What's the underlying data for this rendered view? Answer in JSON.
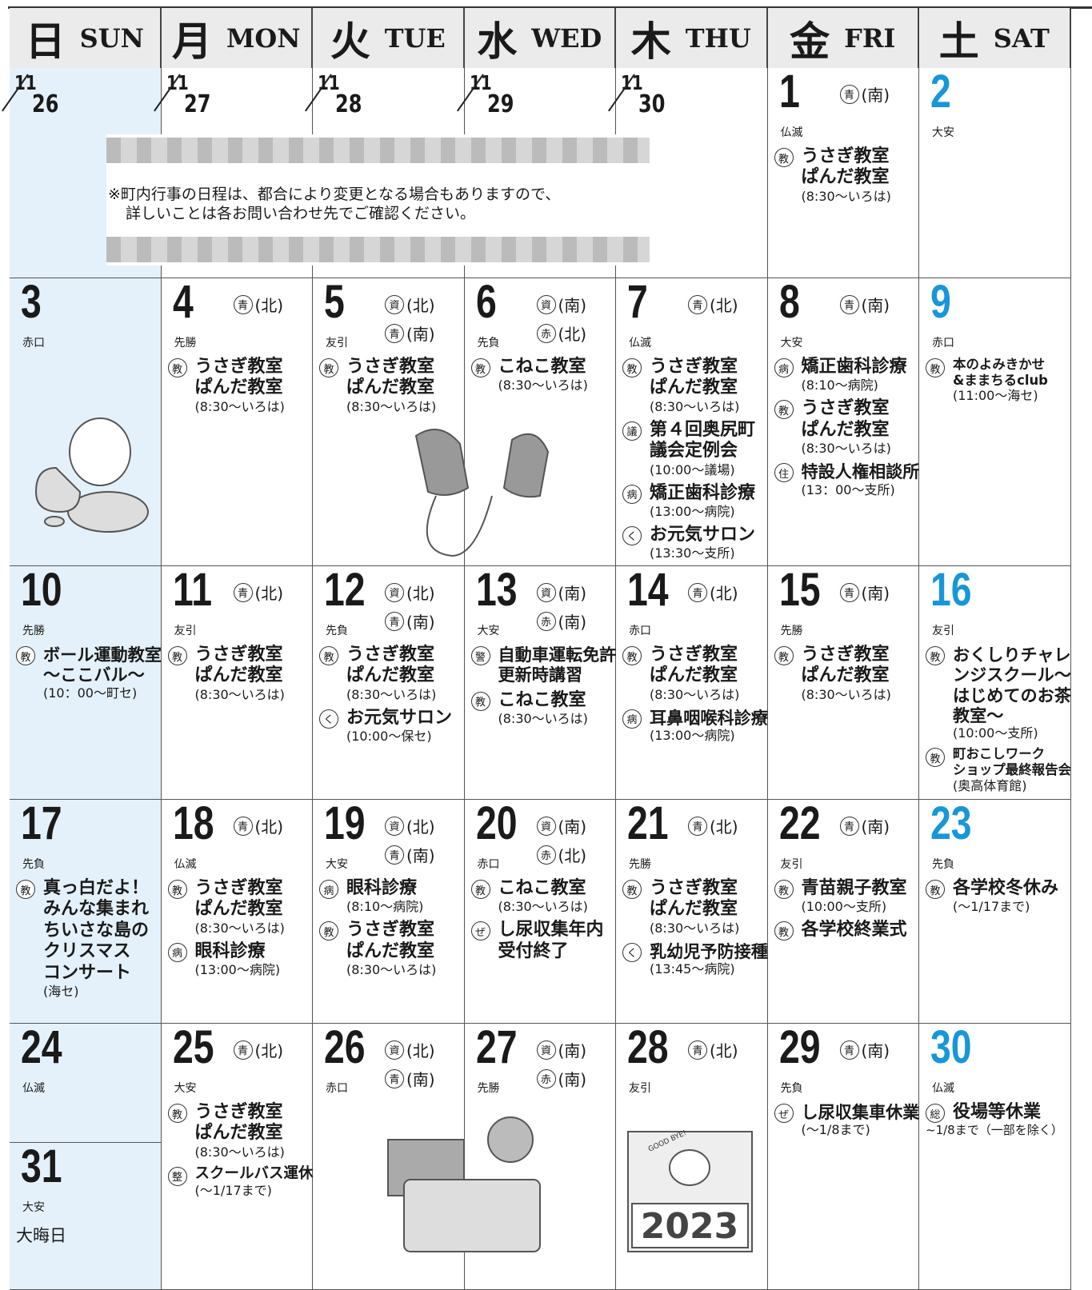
{
  "header": [
    {
      "kanji": "日",
      "en": "SUN"
    },
    {
      "kanji": "月",
      "en": "MON"
    },
    {
      "kanji": "火",
      "en": "TUE"
    },
    {
      "kanji": "水",
      "en": "WED"
    },
    {
      "kanji": "木",
      "en": "THU"
    },
    {
      "kanji": "金",
      "en": "FRI"
    },
    {
      "kanji": "土",
      "en": "SAT"
    }
  ],
  "notice": [
    "※町内行事の日程は、都合により変更となる場合もありますので、",
    "詳しいことは各お問い合わせ先でご確認ください。"
  ],
  "illustration_texts": {
    "sign": "GOOD BYE!",
    "year": "2023"
  },
  "weeks": [
    [
      {
        "month": "11",
        "day": "26"
      },
      {
        "month": "11",
        "day": "27"
      },
      {
        "month": "11",
        "day": "28"
      },
      {
        "month": "11",
        "day": "29"
      },
      {
        "month": "11",
        "day": "30"
      },
      {
        "day": "1",
        "rokuyo": "仏滅",
        "tags": [
          {
            "icon": "青",
            "area": "(南)"
          }
        ],
        "events": [
          {
            "icon": "教",
            "title": [
              "うさぎ教室",
              "ぱんだ教室"
            ],
            "note": "(8:30〜いろは)"
          }
        ]
      },
      {
        "day": "2",
        "rokuyo": "大安"
      }
    ],
    [
      {
        "day": "3",
        "rokuyo": "赤口"
      },
      {
        "day": "4",
        "rokuyo": "先勝",
        "tags": [
          {
            "icon": "青",
            "area": "(北)"
          }
        ],
        "events": [
          {
            "icon": "教",
            "title": [
              "うさぎ教室",
              "ぱんだ教室"
            ],
            "note": "(8:30〜いろは)"
          }
        ]
      },
      {
        "day": "5",
        "rokuyo": "友引",
        "tags": [
          {
            "icon": "資",
            "area": "(北)"
          },
          {
            "icon": "青",
            "area": "(南)"
          }
        ],
        "events": [
          {
            "icon": "教",
            "title": [
              "うさぎ教室",
              "ぱんだ教室"
            ],
            "note": "(8:30〜いろは)"
          }
        ]
      },
      {
        "day": "6",
        "rokuyo": "先負",
        "tags": [
          {
            "icon": "資",
            "area": "(南)"
          },
          {
            "icon": "赤",
            "area": "(北)"
          }
        ],
        "events": [
          {
            "icon": "教",
            "title": [
              "こねこ教室"
            ],
            "note": "(8:30〜いろは)"
          }
        ]
      },
      {
        "day": "7",
        "rokuyo": "仏滅",
        "tags": [
          {
            "icon": "青",
            "area": "(北)"
          }
        ],
        "events": [
          {
            "icon": "教",
            "title": [
              "うさぎ教室",
              "ぱんだ教室"
            ],
            "note": "(8:30〜いろは)"
          },
          {
            "icon": "議",
            "title": [
              "第４回奥尻町",
              "議会定例会"
            ],
            "note": "(10:00〜議場)"
          },
          {
            "icon": "病",
            "title": [
              "矯正歯科診療"
            ],
            "note": "(13:00〜病院)"
          },
          {
            "icon": "く",
            "title": [
              "お元気サロン"
            ],
            "note": "(13:30〜支所)"
          }
        ]
      },
      {
        "day": "8",
        "rokuyo": "大安",
        "tags": [
          {
            "icon": "青",
            "area": "(南)"
          }
        ],
        "events": [
          {
            "icon": "病",
            "title": [
              "矯正歯科診療"
            ],
            "note": "(8:10〜病院)"
          },
          {
            "icon": "教",
            "title": [
              "うさぎ教室",
              "ぱんだ教室"
            ],
            "note": "(8:30〜いろは)"
          },
          {
            "icon": "住",
            "title": [
              "特設人権相談所"
            ],
            "note": "(13：00〜支所)"
          }
        ]
      },
      {
        "day": "9",
        "rokuyo": "赤口",
        "events": [
          {
            "icon": "教",
            "title": [
              "本のよみきかせ",
              "&ままちるclub"
            ],
            "note": "(11:00〜海セ)"
          }
        ]
      }
    ],
    [
      {
        "day": "10",
        "rokuyo": "先勝",
        "events": [
          {
            "icon": "教",
            "title": [
              "ボール運動教室",
              "〜ここバル〜"
            ],
            "note": "(10：00〜町セ)"
          }
        ]
      },
      {
        "day": "11",
        "rokuyo": "友引",
        "tags": [
          {
            "icon": "青",
            "area": "(北)"
          }
        ],
        "events": [
          {
            "icon": "教",
            "title": [
              "うさぎ教室",
              "ぱんだ教室"
            ],
            "note": "(8:30〜いろは)"
          }
        ]
      },
      {
        "day": "12",
        "rokuyo": "先負",
        "tags": [
          {
            "icon": "資",
            "area": "(北)"
          },
          {
            "icon": "青",
            "area": "(南)"
          }
        ],
        "events": [
          {
            "icon": "教",
            "title": [
              "うさぎ教室",
              "ぱんだ教室"
            ],
            "note": "(8:30〜いろは)"
          },
          {
            "icon": "く",
            "title": [
              "お元気サロン"
            ],
            "note": "(10:00〜保セ)"
          }
        ]
      },
      {
        "day": "13",
        "rokuyo": "大安",
        "tags": [
          {
            "icon": "資",
            "area": "(南)"
          },
          {
            "icon": "赤",
            "area": "(南)"
          }
        ],
        "events": [
          {
            "icon": "警",
            "title": [
              "自動車運転免許",
              "更新時講習"
            ]
          },
          {
            "icon": "教",
            "title": [
              "こねこ教室"
            ],
            "note": "(8:30〜いろは)"
          }
        ]
      },
      {
        "day": "14",
        "rokuyo": "赤口",
        "tags": [
          {
            "icon": "青",
            "area": "(北)"
          }
        ],
        "events": [
          {
            "icon": "教",
            "title": [
              "うさぎ教室",
              "ぱんだ教室"
            ],
            "note": "(8:30〜いろは)"
          },
          {
            "icon": "病",
            "title": [
              "耳鼻咽喉科診療"
            ],
            "note": "(13:00〜病院)"
          }
        ]
      },
      {
        "day": "15",
        "rokuyo": "先勝",
        "tags": [
          {
            "icon": "青",
            "area": "(南)"
          }
        ],
        "events": [
          {
            "icon": "教",
            "title": [
              "うさぎ教室",
              "ぱんだ教室"
            ],
            "note": "(8:30〜いろは)"
          }
        ]
      },
      {
        "day": "16",
        "rokuyo": "友引",
        "events": [
          {
            "icon": "教",
            "title": [
              "おくしりチャレ",
              "ンジスクール〜",
              "はじめてのお茶",
              "教室〜"
            ],
            "note": "(10:00〜支所)"
          },
          {
            "icon": "教",
            "title": [
              "町おこしワーク",
              "ショップ最終報告会"
            ],
            "note": "(奥高体育館)"
          }
        ]
      }
    ],
    [
      {
        "day": "17",
        "rokuyo": "先負",
        "events": [
          {
            "icon": "教",
            "title": [
              "真っ白だよ！",
              "みんな集まれ",
              "ちいさな島の",
              "クリスマス",
              "コンサート"
            ],
            "note": "(海セ)"
          }
        ]
      },
      {
        "day": "18",
        "rokuyo": "仏滅",
        "tags": [
          {
            "icon": "青",
            "area": "(北)"
          }
        ],
        "events": [
          {
            "icon": "教",
            "title": [
              "うさぎ教室",
              "ぱんだ教室"
            ],
            "note": "(8:30〜いろは)"
          },
          {
            "icon": "病",
            "title": [
              "眼科診療"
            ],
            "note": "(13:00〜病院)"
          }
        ]
      },
      {
        "day": "19",
        "rokuyo": "大安",
        "tags": [
          {
            "icon": "資",
            "area": "(北)"
          },
          {
            "icon": "青",
            "area": "(南)"
          }
        ],
        "events": [
          {
            "icon": "病",
            "title": [
              "眼科診療"
            ],
            "note": "(8:10〜病院)"
          },
          {
            "icon": "教",
            "title": [
              "うさぎ教室",
              "ぱんだ教室"
            ],
            "note": "(8:30〜いろは)"
          }
        ]
      },
      {
        "day": "20",
        "rokuyo": "赤口",
        "tags": [
          {
            "icon": "資",
            "area": "(南)"
          },
          {
            "icon": "赤",
            "area": "(北)"
          }
        ],
        "events": [
          {
            "icon": "教",
            "title": [
              "こねこ教室"
            ],
            "note": "(8:30〜いろは)"
          },
          {
            "icon": "ぜ",
            "title": [
              "し尿収集年内",
              "受付終了"
            ]
          }
        ]
      },
      {
        "day": "21",
        "rokuyo": "先勝",
        "tags": [
          {
            "icon": "青",
            "area": "(北)"
          }
        ],
        "events": [
          {
            "icon": "教",
            "title": [
              "うさぎ教室",
              "ぱんだ教室"
            ],
            "note": "(8:30〜いろは)"
          },
          {
            "icon": "く",
            "title": [
              "乳幼児予防接種"
            ],
            "note": "(13:45〜病院)"
          }
        ]
      },
      {
        "day": "22",
        "rokuyo": "友引",
        "tags": [
          {
            "icon": "青",
            "area": "(南)"
          }
        ],
        "events": [
          {
            "icon": "教",
            "title": [
              "青苗親子教室"
            ],
            "note": "(10:00〜支所)"
          },
          {
            "icon": "教",
            "title": [
              "各学校終業式"
            ]
          }
        ]
      },
      {
        "day": "23",
        "rokuyo": "先負",
        "events": [
          {
            "icon": "教",
            "title": [
              "各学校冬休み"
            ],
            "note": "(〜1/17まで)"
          }
        ]
      }
    ],
    [
      {
        "day": "24",
        "rokuyo": "仏滅",
        "extra": {
          "day": "31",
          "rokuyo": "大安",
          "note": "大晦日"
        }
      },
      {
        "day": "25",
        "rokuyo": "大安",
        "tags": [
          {
            "icon": "青",
            "area": "(北)"
          }
        ],
        "events": [
          {
            "icon": "教",
            "title": [
              "うさぎ教室",
              "ぱんだ教室"
            ],
            "note": "(8:30〜いろは)"
          },
          {
            "icon": "整",
            "title": [
              "スクールバス運休"
            ],
            "note": "(〜1/17まで)"
          }
        ]
      },
      {
        "day": "26",
        "rokuyo": "赤口",
        "tags": [
          {
            "icon": "資",
            "area": "(北)"
          },
          {
            "icon": "青",
            "area": "(南)"
          }
        ]
      },
      {
        "day": "27",
        "rokuyo": "先勝",
        "tags": [
          {
            "icon": "資",
            "area": "(南)"
          },
          {
            "icon": "赤",
            "area": "(南)"
          }
        ]
      },
      {
        "day": "28",
        "rokuyo": "友引",
        "tags": [
          {
            "icon": "青",
            "area": "(北)"
          }
        ]
      },
      {
        "day": "29",
        "rokuyo": "先負",
        "tags": [
          {
            "icon": "青",
            "area": "(南)"
          }
        ],
        "events": [
          {
            "icon": "ぜ",
            "title": [
              "し尿収集車休業"
            ],
            "note": "(〜1/8まで)"
          }
        ]
      },
      {
        "day": "30",
        "rokuyo": "仏滅",
        "events": [
          {
            "icon": "総",
            "title": [
              "役場等休業"
            ],
            "note": "~1/8まで（一部を除く）"
          }
        ]
      }
    ]
  ]
}
